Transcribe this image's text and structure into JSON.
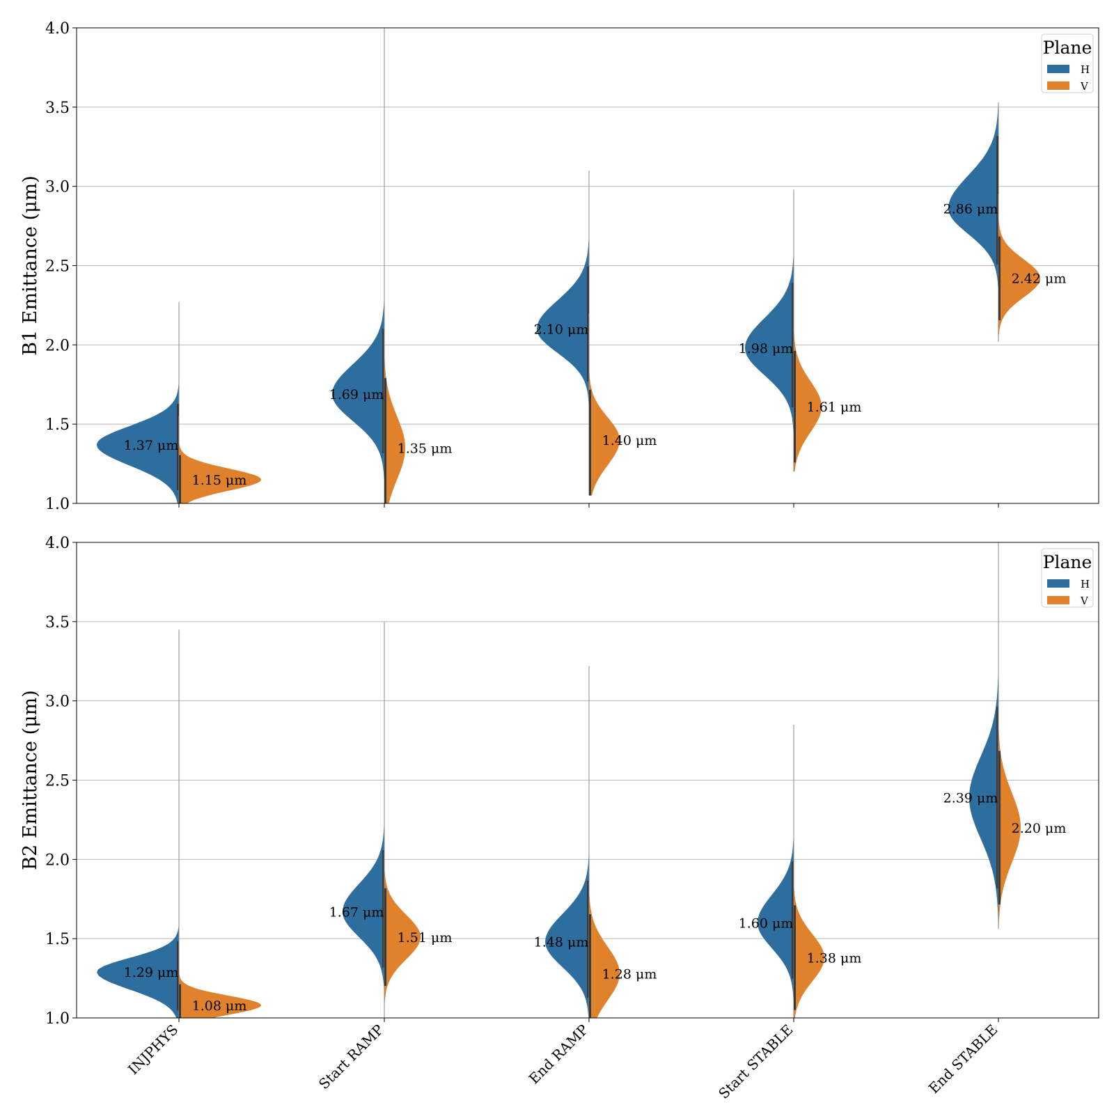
{
  "colors": {
    "H": "#2e6e9e",
    "V": "#e0812b",
    "grid": "#b8b8b8"
  },
  "chart_data": [
    {
      "type": "violin",
      "ylabel": "B1 Emittance (μm)",
      "ylim": [
        1.0,
        4.0
      ],
      "yticks": [
        "1.0",
        "1.5",
        "2.0",
        "2.5",
        "3.0",
        "3.5",
        "4.0"
      ],
      "categories": [
        "INJPHYS",
        "Start RAMP",
        "End RAMP",
        "Start STABLE",
        "End STABLE"
      ],
      "grid": true,
      "legend": {
        "title": "Plane",
        "placement": "top-right",
        "entries": [
          "H",
          "V"
        ]
      },
      "series": [
        {
          "name": "H",
          "medians": [
            1.37,
            1.69,
            2.1,
            1.98,
            2.86
          ],
          "labels": [
            "1.37 μm",
            "1.69 μm",
            "2.10 μm",
            "1.98 μm",
            "2.86 μm"
          ]
        },
        {
          "name": "V",
          "medians": [
            1.15,
            1.35,
            1.4,
            1.61,
            2.42
          ],
          "labels": [
            "1.15 μm",
            "1.35 μm",
            "1.40 μm",
            "1.61 μm",
            "2.42 μm"
          ]
        }
      ]
    },
    {
      "type": "violin",
      "ylabel": "B2 Emittance (μm)",
      "ylim": [
        1.0,
        4.0
      ],
      "yticks": [
        "1.0",
        "1.5",
        "2.0",
        "2.5",
        "3.0",
        "3.5",
        "4.0"
      ],
      "categories": [
        "INJPHYS",
        "Start RAMP",
        "End RAMP",
        "Start STABLE",
        "End STABLE"
      ],
      "grid": true,
      "legend": {
        "title": "Plane",
        "placement": "top-right",
        "entries": [
          "H",
          "V"
        ]
      },
      "series": [
        {
          "name": "H",
          "medians": [
            1.29,
            1.67,
            1.48,
            1.6,
            2.39
          ],
          "labels": [
            "1.29 μm",
            "1.67 μm",
            "1.48 μm",
            "1.60 μm",
            "2.39 μm"
          ]
        },
        {
          "name": "V",
          "medians": [
            1.08,
            1.51,
            1.28,
            1.38,
            2.2
          ],
          "labels": [
            "1.08 μm",
            "1.51 μm",
            "1.28 μm",
            "1.38 μm",
            "2.20 μm"
          ]
        }
      ]
    }
  ]
}
